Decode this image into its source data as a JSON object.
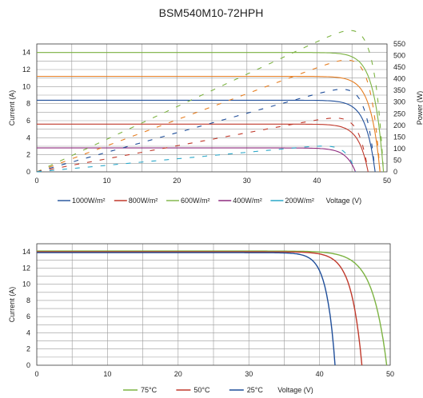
{
  "title": "BSM540M10-72HPH",
  "chart_data": [
    {
      "type": "line",
      "title": "BSM540M10-72HPH",
      "xlabel": "Voltage (V)",
      "ylabel": "Current (A)",
      "y2label": "Power (W)",
      "xlim": [
        0,
        50
      ],
      "ylim": [
        0,
        15
      ],
      "y2lim": [
        0,
        550
      ],
      "xticks": [
        0,
        10,
        20,
        30,
        40,
        50
      ],
      "yticks": [
        0,
        2,
        4,
        6,
        8,
        10,
        12,
        14
      ],
      "y2ticks": [
        0,
        50,
        100,
        150,
        200,
        250,
        300,
        350,
        400,
        450,
        500,
        550
      ],
      "grid": true,
      "legend_position": "bottom",
      "series": [
        {
          "name": "1000W/m²",
          "color": "#1f4e9a",
          "isc": 14.0,
          "voc": 49.5,
          "pmax": 540
        },
        {
          "name": "800W/m²",
          "color": "#c0392b",
          "isc": 11.2,
          "voc": 49.0,
          "pmax": 432
        },
        {
          "name": "600W/m²",
          "color": "#7cb342",
          "isc": 8.4,
          "voc": 48.3,
          "pmax": 320
        },
        {
          "name": "400W/m²",
          "color": "#8e2a7e",
          "isc": 5.6,
          "voc": 47.3,
          "pmax": 210
        },
        {
          "name": "200W/m²",
          "color": "#2aa7c9",
          "isc": 2.8,
          "voc": 45.5,
          "pmax": 104
        }
      ],
      "power_series_colors": [
        "#7cb342",
        "#e67e22",
        "#1f4e9a",
        "#c0392b",
        "#2aa7c9"
      ],
      "current_series_colors": [
        "#7cb342",
        "#e67e22",
        "#1f4e9a",
        "#c0392b",
        "#8e2a7e"
      ]
    },
    {
      "type": "line",
      "xlabel": "Voltage (V)",
      "ylabel": "Current (A)",
      "xlim": [
        0,
        50
      ],
      "ylim": [
        0,
        15
      ],
      "xticks": [
        0,
        10,
        20,
        30,
        40,
        50
      ],
      "yticks": [
        0,
        2,
        4,
        6,
        8,
        10,
        12,
        14
      ],
      "grid": true,
      "legend_position": "bottom",
      "series": [
        {
          "name": "75°C",
          "color": "#7cb342",
          "isc": 14.1,
          "voc": 49.5
        },
        {
          "name": "50°C",
          "color": "#c0392b",
          "isc": 14.0,
          "voc": 46.0
        },
        {
          "name": "25°C",
          "color": "#1f4e9a",
          "isc": 13.9,
          "voc": 42.2
        }
      ]
    }
  ]
}
